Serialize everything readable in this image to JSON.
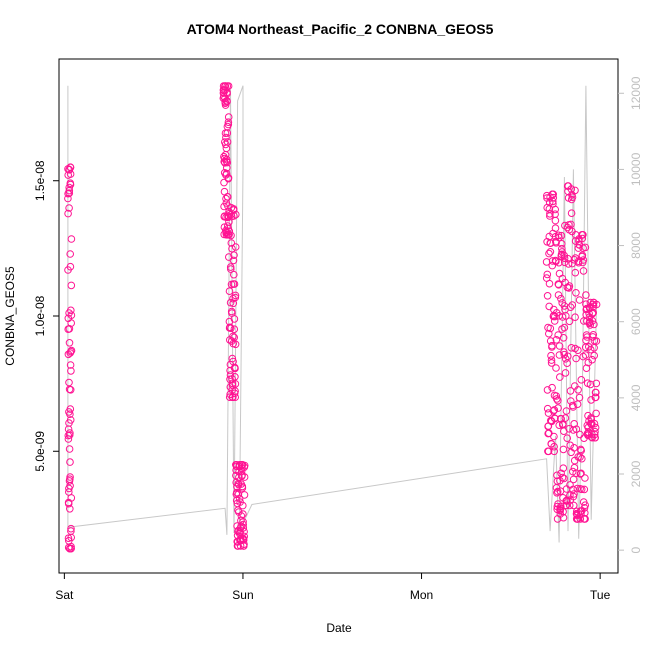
{
  "chart_data": {
    "type": "scatter",
    "title": "ATOM4 Northeast_Pacific_2 CONBNA_GEOS5",
    "xlabel": "Date",
    "ylabel": "CONBNA_GEOS5",
    "x_ticks": [
      "Sat",
      "Sun",
      "Mon",
      "Tue"
    ],
    "y_ticks": [
      "5.0e-09",
      "1.0e-08",
      "1.5e-08"
    ],
    "y_tick_values": [
      5e-09,
      1e-08,
      1.5e-08
    ],
    "ylim": [
      5e-10,
      1.95e-08
    ],
    "y2_ticks": [
      "0",
      "2000",
      "4000",
      "6000",
      "8000",
      "10000",
      "12000"
    ],
    "y2_tick_values": [
      0,
      2000,
      4000,
      6000,
      8000,
      10000,
      12000
    ],
    "y2lim": [
      -600,
      12900
    ],
    "xlim_days": [
      -0.03,
      3.1
    ],
    "series": [
      {
        "role": "concentration",
        "color": "#ff1493",
        "segments": [
          {
            "x0": 0.02,
            "x1": 0.04,
            "v0": 1.4e-09,
            "v1": 1.55e-08
          },
          {
            "x0": 0.89,
            "x1": 0.92,
            "v0": 1.3e-08,
            "v1": 1.85e-08
          },
          {
            "x0": 0.92,
            "x1": 0.96,
            "v0": 7e-09,
            "v1": 1.4e-08
          },
          {
            "x0": 0.96,
            "x1": 1.01,
            "v0": 1.5e-09,
            "v1": 4.5e-09
          },
          {
            "x0": 2.7,
            "x1": 2.75,
            "v0": 5e-09,
            "v1": 1.45e-08
          },
          {
            "x0": 2.75,
            "x1": 2.8,
            "v0": 2.5e-09,
            "v1": 1.3e-08
          },
          {
            "x0": 2.8,
            "x1": 2.86,
            "v0": 3e-09,
            "v1": 1.48e-08
          },
          {
            "x0": 2.86,
            "x1": 2.92,
            "v0": 2.5e-09,
            "v1": 1.3e-08
          },
          {
            "x0": 2.92,
            "x1": 2.98,
            "v0": 5.5e-09,
            "v1": 1.05e-08
          }
        ]
      },
      {
        "role": "altitude",
        "color": "#c8c8c8",
        "points": [
          [
            0.02,
            12200
          ],
          [
            0.02,
            600
          ],
          [
            0.9,
            1100
          ],
          [
            0.91,
            400
          ],
          [
            0.93,
            12100
          ],
          [
            0.95,
            450
          ],
          [
            0.97,
            11800
          ],
          [
            1.0,
            12200
          ],
          [
            1.0,
            10000
          ],
          [
            0.98,
            500
          ],
          [
            1.05,
            1200
          ],
          [
            2.7,
            2400
          ],
          [
            2.72,
            500
          ],
          [
            2.75,
            3000
          ],
          [
            2.77,
            200
          ],
          [
            2.8,
            9800
          ],
          [
            2.82,
            500
          ],
          [
            2.85,
            10000
          ],
          [
            2.88,
            300
          ],
          [
            2.9,
            4000
          ],
          [
            2.92,
            12200
          ],
          [
            2.95,
            800
          ],
          [
            2.98,
            6500
          ]
        ]
      }
    ]
  }
}
